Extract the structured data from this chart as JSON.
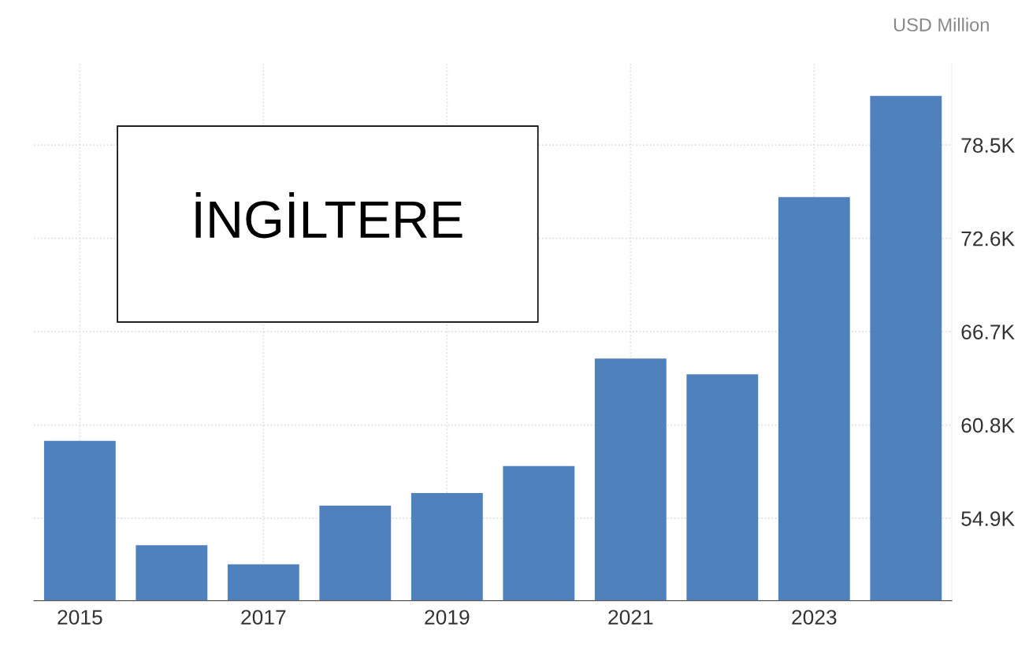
{
  "chart_data": {
    "type": "bar",
    "title": "İNGİLTERE",
    "annotations": [
      "USD Million"
    ],
    "categories": [
      "2015",
      null,
      "2017",
      null,
      "2019",
      null,
      "2021",
      null,
      "2023",
      null
    ],
    "values": [
      59.8,
      53.2,
      52.0,
      55.7,
      56.5,
      58.2,
      65.0,
      64.0,
      75.2,
      81.6
    ],
    "color": "#4f81bd",
    "ylim": [
      49.7,
      83.7
    ],
    "yticks": [
      {
        "value": 54.9,
        "label": "54.9K"
      },
      {
        "value": 60.8,
        "label": "60.8K"
      },
      {
        "value": 66.7,
        "label": "66.7K"
      },
      {
        "value": 72.6,
        "label": "72.6K"
      },
      {
        "value": 78.5,
        "label": "78.5K"
      }
    ],
    "grid": true
  }
}
